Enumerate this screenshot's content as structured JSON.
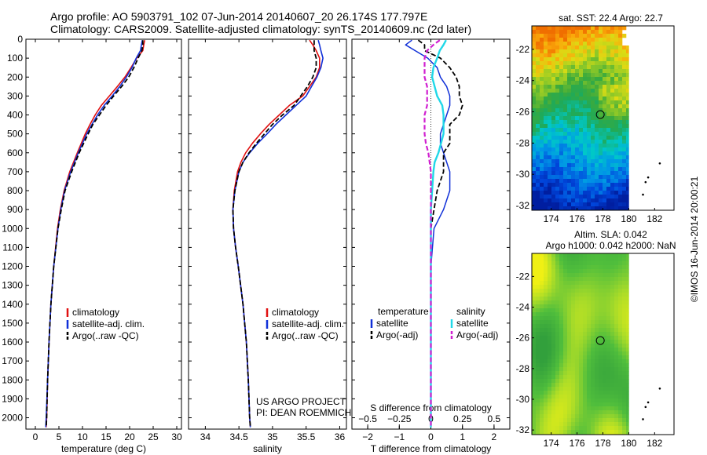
{
  "figure": {
    "title_line1": "Argo profile: AO 5903791_102 07-Jun-2014 20140607_20 26.174S 177.797E",
    "title_line2": "Climatology: CARS2009. Satellite-adjusted climatology: synTS_20140609.nc (2d later)",
    "side_label": "©IMOS 16-Jun-2014 20:00:21",
    "project_line1": "US ARGO PROJECT",
    "project_line2": "PI: DEAN ROEMMICH"
  },
  "colors": {
    "climatology": "#e01010",
    "satellite": "#1030d8",
    "argo": "#000000",
    "salinity_satellite": "#20d8e8",
    "salinity_argo": "#d020d0"
  },
  "chart_data": [
    {
      "id": "temperature",
      "type": "line",
      "xlabel": "temperature (deg C)",
      "ylabel": "",
      "xlim": [
        -2,
        31
      ],
      "ylim": [
        2060,
        0
      ],
      "xticks": [
        0,
        5,
        10,
        15,
        20,
        25,
        30
      ],
      "yticks": [
        0,
        100,
        200,
        300,
        400,
        500,
        600,
        700,
        800,
        900,
        1000,
        1100,
        1200,
        1300,
        1400,
        1500,
        1600,
        1700,
        1800,
        1900,
        2000
      ],
      "depth": [
        5,
        30,
        60,
        100,
        150,
        200,
        250,
        300,
        350,
        400,
        450,
        500,
        600,
        700,
        800,
        900,
        1000,
        1200,
        1400,
        1600,
        1800,
        2000,
        2050
      ],
      "legend": [
        "climatology",
        "satellite-adj. clim.",
        "Argo(..raw -QC)"
      ],
      "series": [
        {
          "name": "climatology",
          "values": [
            23.2,
            23.0,
            22.8,
            21.5,
            20.3,
            19.0,
            17.4,
            15.7,
            14.0,
            12.7,
            11.6,
            10.6,
            8.9,
            7.3,
            6.1,
            5.3,
            4.7,
            3.9,
            3.3,
            2.9,
            2.6,
            2.4,
            2.3
          ]
        },
        {
          "name": "satellite-adj. clim.",
          "values": [
            22.7,
            22.5,
            22.3,
            21.4,
            20.5,
            19.3,
            17.9,
            16.3,
            14.6,
            13.2,
            12.0,
            10.9,
            9.1,
            7.5,
            6.2,
            5.4,
            4.8,
            3.9,
            3.3,
            2.9,
            2.6,
            2.3,
            2.2
          ]
        },
        {
          "name": "Argo(..raw -QC)",
          "values": [
            22.8,
            22.8,
            22.6,
            21.8,
            20.9,
            19.8,
            18.3,
            16.6,
            15.0,
            13.6,
            12.2,
            11.2,
            9.3,
            7.7,
            6.3,
            5.5,
            4.8,
            3.9,
            3.3,
            2.9,
            2.6,
            2.4,
            2.3
          ]
        }
      ]
    },
    {
      "id": "salinity",
      "type": "line",
      "xlabel": "salinity",
      "ylabel": "",
      "xlim": [
        33.75,
        36.1
      ],
      "ylim": [
        2060,
        0
      ],
      "xticks": [
        34,
        34.5,
        35,
        35.5,
        36
      ],
      "depth": [
        5,
        30,
        60,
        100,
        150,
        200,
        250,
        300,
        350,
        400,
        450,
        500,
        550,
        600,
        650,
        700,
        800,
        900,
        1000,
        1100,
        1200,
        1400,
        1600,
        1800,
        2000,
        2050
      ],
      "legend": [
        "climatology",
        "satellite-adj. clim.",
        "Argo(..raw -QC)"
      ],
      "series": [
        {
          "name": "climatology",
          "values": [
            35.55,
            35.6,
            35.65,
            35.7,
            35.7,
            35.65,
            35.55,
            35.45,
            35.25,
            35.1,
            34.95,
            34.82,
            34.7,
            34.6,
            34.53,
            34.48,
            34.43,
            34.41,
            34.42,
            34.45,
            34.49,
            34.56,
            34.61,
            34.64,
            34.66,
            34.67
          ]
        },
        {
          "name": "satellite-adj. clim.",
          "values": [
            35.68,
            35.7,
            35.72,
            35.75,
            35.72,
            35.66,
            35.58,
            35.5,
            35.35,
            35.2,
            35.05,
            34.92,
            34.78,
            34.66,
            34.56,
            34.5,
            34.44,
            34.41,
            34.42,
            34.45,
            34.49,
            34.56,
            34.61,
            34.64,
            34.66,
            34.67
          ]
        },
        {
          "name": "Argo(..raw -QC)",
          "values": [
            35.62,
            35.62,
            35.62,
            35.65,
            35.65,
            35.6,
            35.52,
            35.42,
            35.32,
            35.15,
            35.0,
            34.88,
            34.76,
            34.65,
            34.56,
            34.5,
            34.44,
            34.41,
            34.42,
            34.45,
            34.49,
            34.56,
            34.61,
            34.64,
            34.66,
            34.67
          ]
        }
      ]
    },
    {
      "id": "difference",
      "type": "line",
      "xlabel": "T difference from climatology",
      "ylabel": "",
      "top_label": "S difference from climatology",
      "xlim": [
        -2.5,
        2.5
      ],
      "ylim": [
        2060,
        0
      ],
      "xticks": [
        -2,
        -1,
        0,
        1,
        2
      ],
      "xticklabels": [
        "−2",
        "−1",
        "0",
        "1",
        "2"
      ],
      "sticks": [
        -0.5,
        -0.25,
        0,
        0.25,
        0.5
      ],
      "sticklabels": [
        "−0.5",
        "−0.25",
        "0",
        "0.25",
        "0.5"
      ],
      "s_scale": 4,
      "depth": [
        5,
        30,
        60,
        100,
        150,
        200,
        250,
        300,
        350,
        400,
        450,
        500,
        550,
        600,
        650,
        700,
        800,
        900,
        1000,
        1200,
        1400,
        1600,
        1800,
        2000,
        2050
      ],
      "legend": {
        "temperature_title": "temperature",
        "salinity_title": "salinity",
        "temperature": [
          "satellite",
          "Argo(-adj)"
        ],
        "salinity": [
          "satellite",
          "Argo(-adj)"
        ]
      },
      "series": [
        {
          "name": "T satellite",
          "values": [
            -0.6,
            -0.8,
            -0.5,
            -0.1,
            0.2,
            0.3,
            0.5,
            0.6,
            0.6,
            0.5,
            0.4,
            0.3,
            0.3,
            0.4,
            0.5,
            0.6,
            0.6,
            0.4,
            0.1,
            0.0,
            0.0,
            0.0,
            0.0,
            0.0,
            0.0
          ]
        },
        {
          "name": "T Argo(-adj)",
          "values": [
            -0.4,
            -0.2,
            -0.2,
            0.3,
            0.6,
            0.8,
            0.9,
            0.9,
            1.0,
            0.9,
            0.6,
            0.6,
            0.6,
            0.4,
            0.4,
            0.4,
            0.2,
            0.1,
            0.0,
            0.0,
            0.0,
            0.0,
            0.0,
            0.0,
            0.0
          ]
        },
        {
          "name": "S satellite",
          "values": [
            0.12,
            0.1,
            0.07,
            0.05,
            0.02,
            0.01,
            0.03,
            0.05,
            0.09,
            0.1,
            0.1,
            0.1,
            0.08,
            0.06,
            0.03,
            0.02,
            0.01,
            0.0,
            0.0,
            0.0,
            0.0,
            0.0,
            0.0,
            0.0,
            0.0
          ]
        },
        {
          "name": "S Argo(-adj)",
          "values": [
            0.07,
            0.02,
            -0.03,
            -0.05,
            -0.05,
            -0.05,
            -0.03,
            -0.03,
            -0.03,
            -0.05,
            -0.05,
            -0.05,
            -0.04,
            -0.02,
            -0.01,
            0.0,
            0.0,
            0.0,
            0.0,
            0.0,
            0.0,
            0.0,
            0.0,
            0.0,
            0.0
          ]
        }
      ]
    },
    {
      "id": "sst_map",
      "type": "heatmap",
      "title": "sat. SST: 22.4 Argo: 22.7",
      "xlim": [
        172.5,
        183.5
      ],
      "ylim": [
        -32.3,
        -20.5
      ],
      "xticks": [
        174,
        176,
        178,
        180,
        182
      ],
      "yticks": [
        -22,
        -24,
        -26,
        -28,
        -30,
        -32
      ],
      "argo_position": [
        177.797,
        -26.174
      ],
      "land_points": [
        [
          182.4,
          -29.3
        ],
        [
          181.5,
          -30.2
        ],
        [
          181.3,
          -30.5
        ],
        [
          181.1,
          -31.3
        ]
      ]
    },
    {
      "id": "sla_map",
      "type": "heatmap",
      "title_line1": "Altim. SLA: 0.042",
      "title_line2": "Argo h1000: 0.042 h2000: NaN",
      "xlim": [
        172.5,
        183.5
      ],
      "ylim": [
        -32.3,
        -20.5
      ],
      "xticks": [
        174,
        176,
        178,
        180,
        182
      ],
      "yticks": [
        -22,
        -24,
        -26,
        -28,
        -30,
        -32
      ],
      "argo_position": [
        177.797,
        -26.174
      ],
      "land_points": [
        [
          182.4,
          -29.3
        ],
        [
          181.5,
          -30.2
        ],
        [
          181.3,
          -30.5
        ],
        [
          181.1,
          -31.3
        ]
      ]
    }
  ]
}
